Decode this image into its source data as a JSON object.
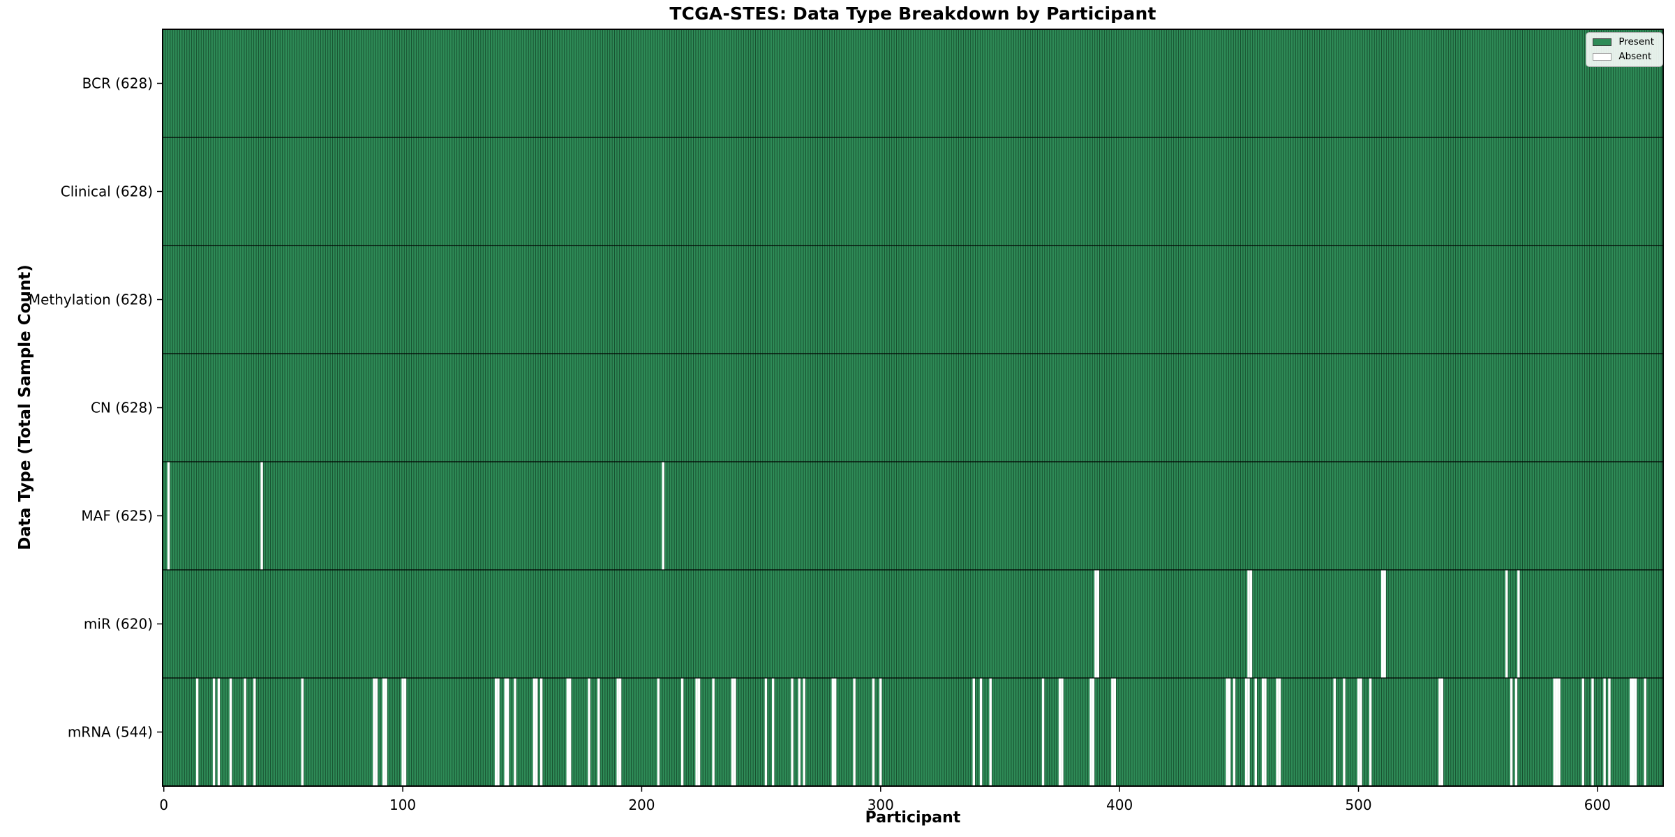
{
  "figure": {
    "title": "TCGA-STES: Data Type Breakdown by Participant",
    "xlabel": "Participant",
    "ylabel": "Data Type (Total Sample Count)"
  },
  "legend": {
    "items": [
      {
        "label": "Present",
        "color": "#2e8b57"
      },
      {
        "label": "Absent",
        "color": "#ffffff"
      }
    ]
  },
  "chart_data": {
    "type": "heatmap",
    "title": "TCGA-STES: Data Type Breakdown by Participant",
    "xlabel": "Participant",
    "ylabel": "Data Type (Total Sample Count)",
    "legend_position": "upper right",
    "legend_entries": [
      "Present",
      "Absent"
    ],
    "grid": false,
    "n_participants": 628,
    "xlim": [
      -0.5,
      627.5
    ],
    "x_ticks": [
      0,
      100,
      200,
      300,
      400,
      500,
      600
    ],
    "colors": {
      "present": "#2e8b57",
      "absent": "#ffffff",
      "bar_edge": "#17502f",
      "row_separator": "#000000",
      "axis": "#000000"
    },
    "rows": [
      {
        "data_type": "BCR",
        "label": "BCR (628)",
        "present_count": 628,
        "absent_participants": []
      },
      {
        "data_type": "Clinical",
        "label": "Clinical (628)",
        "present_count": 628,
        "absent_participants": []
      },
      {
        "data_type": "Methylation",
        "label": "Methylation (628)",
        "present_count": 628,
        "absent_participants": []
      },
      {
        "data_type": "CN",
        "label": "CN (628)",
        "present_count": 628,
        "absent_participants": []
      },
      {
        "data_type": "MAF",
        "label": "MAF (625)",
        "present_count": 625,
        "absent_participants": [
          2,
          41,
          209
        ]
      },
      {
        "data_type": "miR",
        "label": "miR (620)",
        "present_count": 620,
        "absent_participants": [
          390,
          391,
          454,
          455,
          510,
          511,
          562,
          567
        ]
      },
      {
        "data_type": "mRNA",
        "label": "mRNA (544)",
        "present_count": 544,
        "absent_participants": [
          14,
          21,
          23,
          28,
          34,
          38,
          58,
          88,
          89,
          92,
          93,
          100,
          101,
          139,
          140,
          143,
          144,
          147,
          155,
          156,
          158,
          169,
          170,
          178,
          182,
          190,
          191,
          207,
          217,
          223,
          224,
          230,
          238,
          239,
          252,
          255,
          263,
          266,
          268,
          280,
          281,
          289,
          297,
          300,
          339,
          342,
          346,
          368,
          375,
          376,
          388,
          389,
          397,
          398,
          445,
          446,
          448,
          453,
          454,
          457,
          460,
          461,
          466,
          467,
          490,
          494,
          500,
          501,
          505,
          534,
          535,
          564,
          566,
          582,
          583,
          584,
          594,
          598,
          603,
          605,
          614,
          615,
          616,
          620
        ]
      }
    ]
  }
}
